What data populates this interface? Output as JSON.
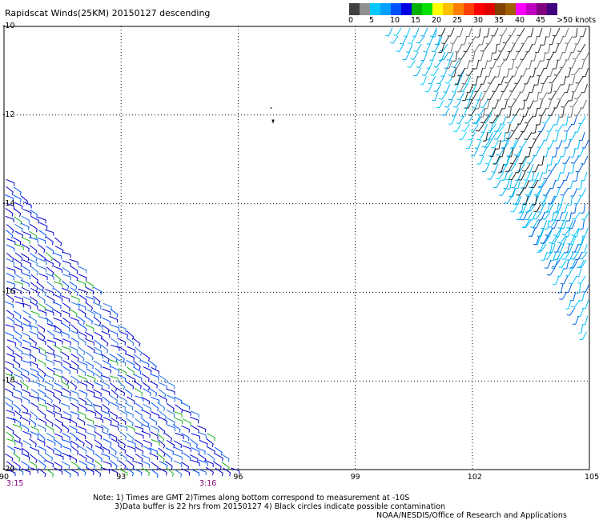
{
  "title": "Rapidscat Winds(25KM) 20150127 descending",
  "legend": {
    "colors": [
      "#404040",
      "#909090",
      "#00c8ff",
      "#00a0ff",
      "#0050ff",
      "#0000e0",
      "#00b000",
      "#00e000",
      "#ffff00",
      "#ffc000",
      "#ff8000",
      "#ff4000",
      "#ff0000",
      "#e00000",
      "#804000",
      "#a06000",
      "#ff00ff",
      "#c000c0",
      "#800080",
      "#400080"
    ],
    "ticks": [
      "0",
      "5",
      "10",
      "15",
      "20",
      "25",
      "30",
      "35",
      "40",
      "45",
      ">50 knots"
    ]
  },
  "map": {
    "lon_ticks": [
      "90",
      "93",
      "96",
      "99",
      "102",
      "105"
    ],
    "lat_ticks": [
      "-10",
      "-12",
      "-14",
      "-16",
      "-18",
      "-20"
    ],
    "lon_range": [
      90,
      105
    ],
    "lat_range": [
      -20,
      -10
    ]
  },
  "times": {
    "left": "3:15",
    "right": "3:16"
  },
  "notes": {
    "line1": "Note: 1) Times are GMT 2)Times along bottom correspond to measurement at -10S",
    "line2": "3)Data buffer is 22 hrs from 20150127 4) Black circles indicate possible contamination",
    "line3": "NOAA/NESDIS/Office of Research and Applications"
  }
}
